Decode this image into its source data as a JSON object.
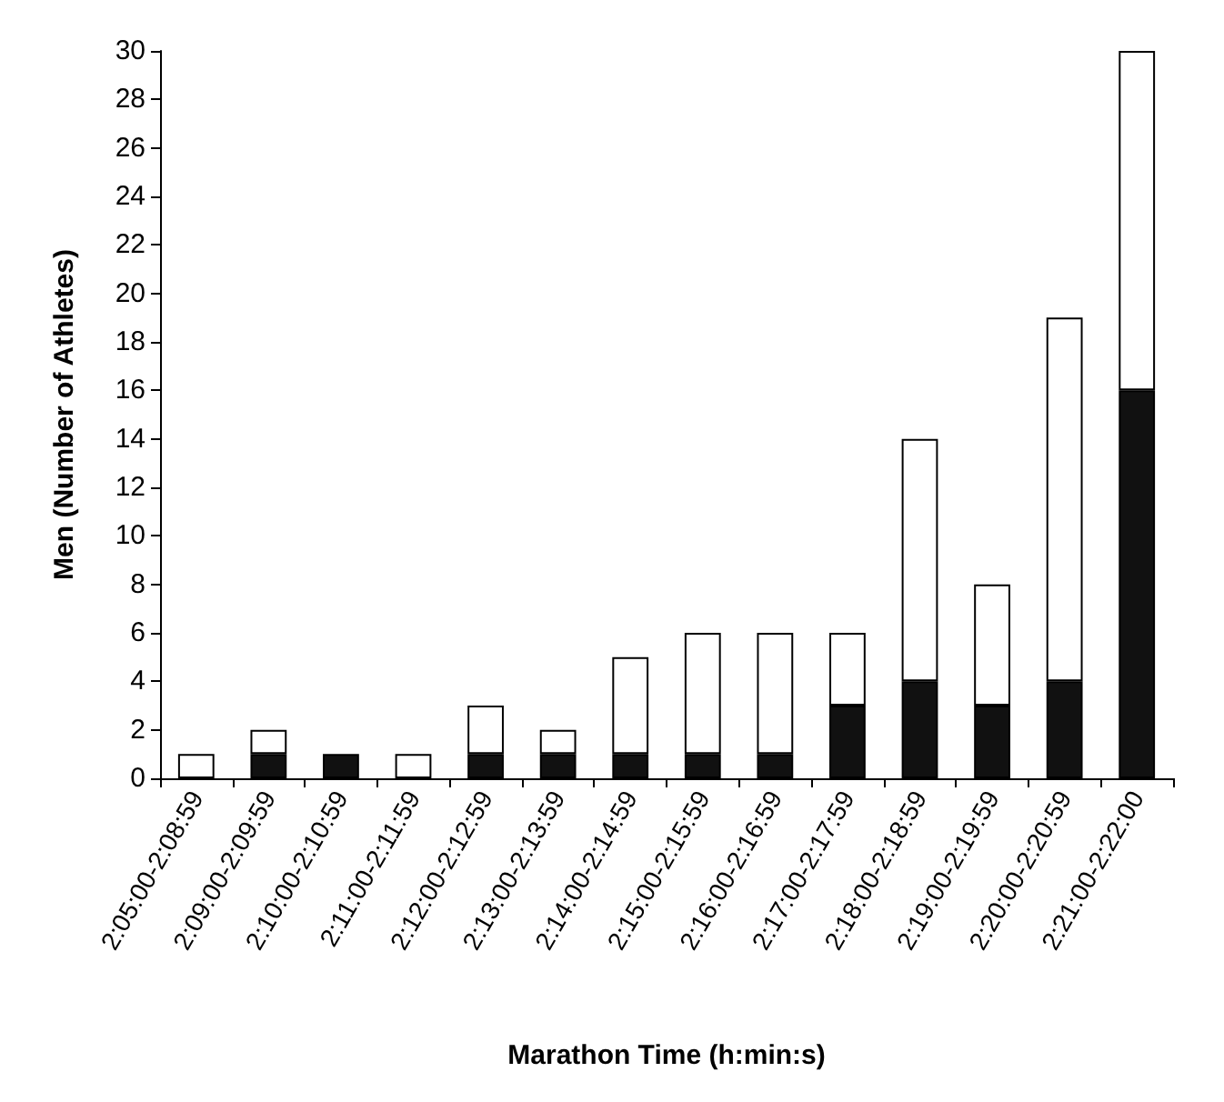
{
  "chart_data": {
    "type": "bar",
    "stacked": true,
    "xlabel": "Marathon Time (h:min:s)",
    "ylabel": "Men (Number of Athletes)",
    "categories": [
      "2:05:00-2:08:59",
      "2:09:00-2:09:59",
      "2:10:00-2:10:59",
      "2:11:00-2:11:59",
      "2:12:00-2:12:59",
      "2:13:00-2:13:59",
      "2:14:00-2:14:59",
      "2:15:00-2:15:59",
      "2:16:00-2:16:59",
      "2:17:00-2:17:59",
      "2:18:00-2:18:59",
      "2:19:00-2:19:59",
      "2:20:00-2:20:59",
      "2:21:00-2:22:00"
    ],
    "series": [
      {
        "color": "#111111",
        "values": [
          0,
          1,
          1,
          0,
          1,
          1,
          1,
          1,
          1,
          3,
          4,
          3,
          4,
          16
        ]
      },
      {
        "color": "#ffffff",
        "values": [
          1,
          1,
          0,
          1,
          2,
          1,
          4,
          5,
          5,
          3,
          10,
          5,
          15,
          14
        ]
      }
    ],
    "ylim": [
      0,
      30
    ],
    "yticks": [
      0,
      2,
      4,
      6,
      8,
      10,
      12,
      14,
      16,
      18,
      20,
      22,
      24,
      26,
      28,
      30
    ],
    "grid": false
  }
}
